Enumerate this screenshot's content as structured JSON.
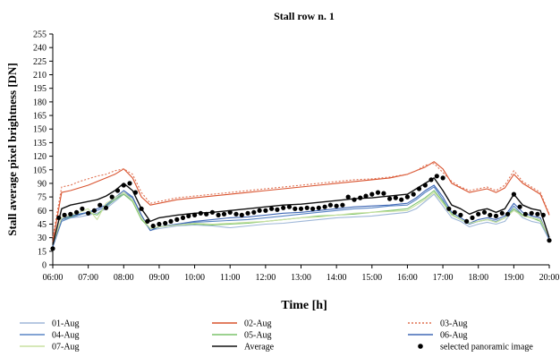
{
  "chart_data": {
    "type": "line",
    "title": "Stall row n. 1",
    "xlabel": "Time [h]",
    "ylabel": "Stall average pixel brightness [DN]",
    "ylim": [
      0,
      255
    ],
    "yticks": [
      0,
      15,
      30,
      45,
      60,
      75,
      90,
      105,
      120,
      135,
      150,
      165,
      180,
      195,
      210,
      225,
      240,
      255
    ],
    "xlim": [
      6,
      20
    ],
    "xtick_labels": [
      "06:00",
      "07:00",
      "08:00",
      "09:00",
      "10:00",
      "11:00",
      "12:00",
      "13:00",
      "14:00",
      "15:00",
      "16:00",
      "17:00",
      "18:00",
      "19:00",
      "20:00"
    ],
    "x": [
      6.0,
      6.25,
      6.5,
      6.75,
      7.0,
      7.25,
      7.5,
      7.75,
      8.0,
      8.25,
      8.5,
      8.75,
      9.0,
      9.5,
      10.0,
      10.5,
      11.0,
      11.5,
      12.0,
      12.5,
      13.0,
      13.5,
      14.0,
      14.5,
      15.0,
      15.5,
      16.0,
      16.25,
      16.5,
      16.75,
      17.0,
      17.25,
      17.5,
      17.75,
      18.0,
      18.25,
      18.5,
      18.75,
      19.0,
      19.25,
      19.5,
      19.75,
      20.0
    ],
    "series": [
      {
        "name": "01-Aug",
        "color": "#9fb7d8",
        "dash": "solid",
        "values": [
          20,
          50,
          52,
          53,
          55,
          57,
          62,
          70,
          78,
          72,
          52,
          38,
          40,
          43,
          44,
          43,
          41,
          43,
          45,
          46,
          48,
          50,
          52,
          53,
          54,
          56,
          58,
          62,
          70,
          78,
          65,
          52,
          48,
          42,
          45,
          47,
          45,
          48,
          62,
          52,
          48,
          46,
          28
        ]
      },
      {
        "name": "02-Aug",
        "color": "#d9532f",
        "dash": "solid",
        "values": [
          25,
          80,
          82,
          85,
          88,
          92,
          96,
          100,
          106,
          96,
          75,
          66,
          68,
          72,
          74,
          76,
          78,
          80,
          82,
          84,
          86,
          88,
          90,
          92,
          94,
          96,
          100,
          104,
          108,
          114,
          106,
          90,
          85,
          80,
          82,
          84,
          80,
          85,
          100,
          90,
          84,
          78,
          55
        ]
      },
      {
        "name": "03-Aug",
        "color": "#e07050",
        "dash": "dotted",
        "values": [
          30,
          86,
          88,
          92,
          95,
          98,
          100,
          104,
          106,
          100,
          80,
          68,
          70,
          74,
          76,
          78,
          80,
          82,
          84,
          86,
          88,
          90,
          92,
          94,
          95,
          97,
          100,
          104,
          110,
          112,
          102,
          92,
          86,
          82,
          84,
          86,
          82,
          88,
          104,
          92,
          86,
          80,
          56
        ]
      },
      {
        "name": "04-Aug",
        "color": "#5a86c5",
        "dash": "solid",
        "values": [
          20,
          48,
          52,
          55,
          58,
          60,
          64,
          72,
          80,
          74,
          55,
          38,
          42,
          45,
          47,
          48,
          49,
          50,
          52,
          54,
          56,
          58,
          60,
          62,
          63,
          65,
          66,
          72,
          80,
          86,
          72,
          55,
          50,
          45,
          48,
          50,
          48,
          52,
          65,
          55,
          52,
          50,
          28
        ]
      },
      {
        "name": "05-Aug",
        "color": "#7cc36b",
        "dash": "solid",
        "values": [
          22,
          50,
          53,
          56,
          58,
          55,
          65,
          72,
          78,
          70,
          50,
          40,
          42,
          44,
          45,
          44,
          45,
          46,
          48,
          50,
          52,
          54,
          55,
          56,
          58,
          60,
          62,
          68,
          74,
          82,
          70,
          56,
          50,
          46,
          48,
          50,
          47,
          52,
          62,
          55,
          52,
          48,
          30
        ]
      },
      {
        "name": "06-Aug",
        "color": "#4169b5",
        "dash": "solid",
        "values": [
          20,
          50,
          54,
          56,
          58,
          62,
          66,
          74,
          82,
          75,
          55,
          38,
          42,
          45,
          48,
          50,
          52,
          53,
          55,
          57,
          58,
          60,
          62,
          64,
          65,
          66,
          68,
          74,
          82,
          88,
          75,
          58,
          52,
          46,
          50,
          52,
          50,
          54,
          68,
          58,
          54,
          52,
          28
        ]
      },
      {
        "name": "07-Aug",
        "color": "#c8e0a0",
        "dash": "solid",
        "values": [
          22,
          52,
          55,
          58,
          62,
          50,
          68,
          74,
          80,
          72,
          52,
          40,
          42,
          44,
          46,
          45,
          46,
          47,
          48,
          50,
          52,
          53,
          55,
          57,
          58,
          59,
          60,
          66,
          72,
          80,
          68,
          55,
          50,
          46,
          48,
          50,
          47,
          52,
          60,
          54,
          52,
          50,
          30
        ]
      },
      {
        "name": "Average",
        "color": "#111111",
        "dash": "solid",
        "values": [
          22,
          62,
          66,
          68,
          70,
          72,
          76,
          82,
          90,
          82,
          62,
          48,
          52,
          55,
          57,
          58,
          60,
          62,
          64,
          66,
          67,
          69,
          71,
          73,
          74,
          76,
          78,
          84,
          90,
          96,
          82,
          66,
          62,
          56,
          60,
          62,
          58,
          62,
          78,
          66,
          62,
          60,
          30
        ]
      }
    ],
    "markers": {
      "name": "selected panoramic image",
      "color": "#000000",
      "x": [
        6.0,
        6.17,
        6.33,
        6.5,
        6.67,
        6.83,
        7.0,
        7.17,
        7.33,
        7.5,
        7.67,
        7.83,
        8.0,
        8.17,
        8.33,
        8.5,
        8.67,
        8.83,
        9.0,
        9.17,
        9.33,
        9.5,
        9.67,
        9.83,
        10.0,
        10.17,
        10.33,
        10.5,
        10.67,
        10.83,
        11.0,
        11.17,
        11.33,
        11.5,
        11.67,
        11.83,
        12.0,
        12.17,
        12.33,
        12.5,
        12.67,
        12.83,
        13.0,
        13.17,
        13.33,
        13.5,
        13.67,
        13.83,
        14.0,
        14.17,
        14.33,
        14.5,
        14.67,
        14.83,
        15.0,
        15.17,
        15.33,
        15.5,
        15.67,
        15.83,
        16.0,
        16.17,
        16.33,
        16.5,
        16.67,
        16.83,
        17.0,
        17.17,
        17.33,
        17.5,
        17.67,
        17.83,
        18.0,
        18.17,
        18.33,
        18.5,
        18.67,
        18.83,
        19.0,
        19.17,
        19.33,
        19.5,
        19.67,
        19.83,
        20.0
      ],
      "y": [
        18,
        52,
        55,
        56,
        58,
        62,
        57,
        60,
        66,
        63,
        75,
        82,
        88,
        90,
        80,
        62,
        48,
        43,
        45,
        46,
        48,
        50,
        52,
        54,
        55,
        57,
        56,
        58,
        55,
        56,
        58,
        56,
        55,
        57,
        58,
        60,
        60,
        62,
        61,
        63,
        64,
        62,
        62,
        63,
        62,
        63,
        64,
        66,
        65,
        66,
        75,
        72,
        74,
        76,
        78,
        80,
        79,
        73,
        74,
        72,
        75,
        78,
        84,
        88,
        94,
        98,
        96,
        62,
        58,
        55,
        48,
        52,
        56,
        58,
        55,
        54,
        57,
        56,
        78,
        64,
        56,
        57,
        56,
        55,
        27
      ]
    },
    "legend": {
      "placement": "bottom",
      "columns": 3
    }
  }
}
